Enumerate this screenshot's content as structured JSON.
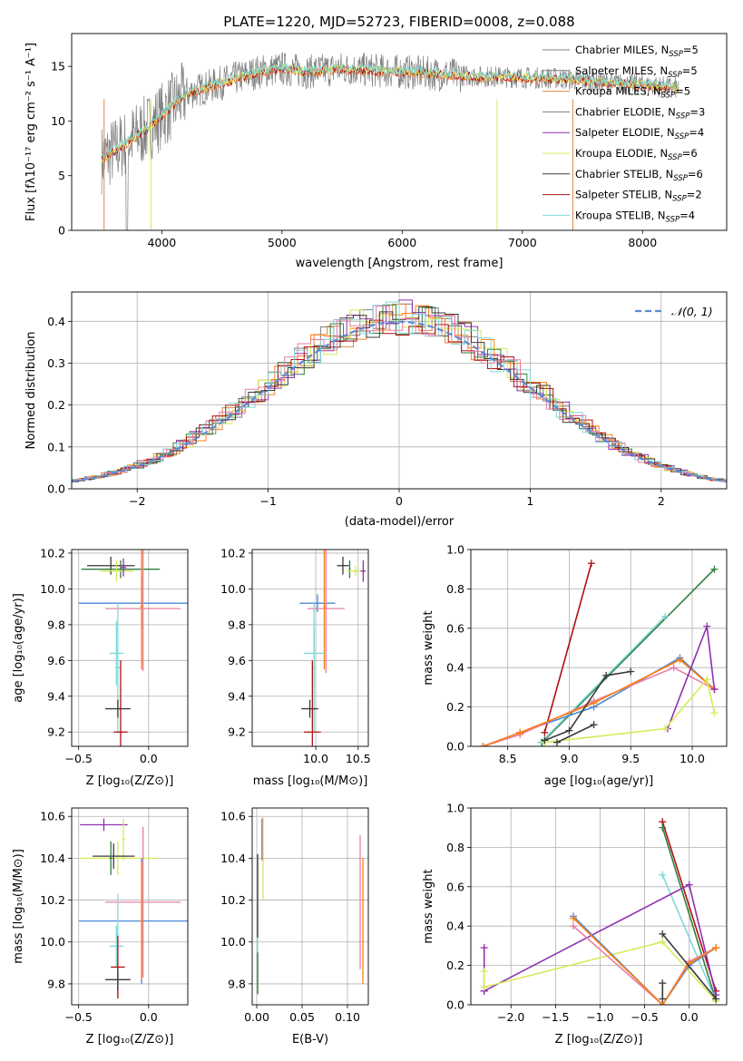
{
  "figure": {
    "title": "PLATE=1220, MJD=52723, FIBERID=0008, z=0.088"
  },
  "colors": {
    "grid": "#b0b0b0",
    "chabrier_miles": "#7f7f7f",
    "salpeter_miles": "#ff7f0e",
    "kroupa_miles": "#e8843c",
    "chabrier_elodie": "#2f7d3f",
    "salpeter_elodie": "#9030b0",
    "kroupa_elodie": "#d7ea5a",
    "chabrier_stelib": "#3a3a3a",
    "salpeter_stelib": "#b01010",
    "kroupa_stelib": "#7fd8d8",
    "blue_series": "#4a88d8",
    "pink_series": "#e67fa8",
    "normal_curve": "#5b8bd6"
  },
  "chart_data": [
    {
      "id": "spectrum",
      "type": "line",
      "title": "PLATE=1220, MJD=52723, FIBERID=0008, z=0.088",
      "xlabel": "wavelength [Angstrom, rest frame]",
      "ylabel": "Flux [fλ10⁻¹⁷ erg cm⁻² s⁻¹ A⁻¹]",
      "xlim": [
        3250,
        8700
      ],
      "ylim": [
        0,
        18
      ],
      "xticks": [
        4000,
        5000,
        6000,
        7000,
        8000
      ],
      "yticks": [
        0,
        5,
        10,
        15
      ],
      "grid": false,
      "legend_position": "right",
      "series": [
        {
          "name": "Chabrier MILES, N",
          "sub": "SSP",
          "suffix": "=5",
          "color": "#7f7f7f"
        },
        {
          "name": "Salpeter MILES, N",
          "sub": "SSP",
          "suffix": "=5",
          "color": "#7f7f7f"
        },
        {
          "name": "Kroupa MILES, N",
          "sub": "SSP",
          "suffix": "=5",
          "color": "#e8843c"
        },
        {
          "name": "Chabrier ELODIE, N",
          "sub": "SSP",
          "suffix": "=3",
          "color": "#7f7f7f"
        },
        {
          "name": "Salpeter ELODIE, N",
          "sub": "SSP",
          "suffix": "=4",
          "color": "#9030b0"
        },
        {
          "name": "Kroupa ELODIE, N",
          "sub": "SSP",
          "suffix": "=6",
          "color": "#d7ea5a"
        },
        {
          "name": "Chabrier STELIB, N",
          "sub": "SSP",
          "suffix": "=6",
          "color": "#3a3a3a"
        },
        {
          "name": "Salpeter STELIB, N",
          "sub": "SSP",
          "suffix": "=2",
          "color": "#b01010"
        },
        {
          "name": "Kroupa STELIB, N",
          "sub": "SSP",
          "suffix": "=4",
          "color": "#7fd8d8"
        }
      ],
      "continuum": {
        "x": [
          3500,
          3700,
          3900,
          4000,
          4200,
          4500,
          4800,
          5000,
          5200,
          5500,
          5800,
          6000,
          6300,
          6600,
          7000,
          7300,
          7600,
          8000,
          8300
        ],
        "y": [
          6.5,
          8.0,
          9.5,
          10.5,
          12.5,
          13.5,
          14.5,
          14.8,
          14.5,
          14.8,
          14.6,
          14.5,
          14.3,
          14.1,
          14.0,
          13.9,
          13.6,
          13.3,
          13.0
        ]
      }
    },
    {
      "id": "residuals",
      "type": "bar",
      "xlabel": "(data-model)/error",
      "ylabel": "Normed distribution",
      "xlim": [
        -2.5,
        2.5
      ],
      "ylim": [
        0,
        0.47
      ],
      "xticks": [
        -2,
        -1,
        0,
        1,
        2
      ],
      "yticks": [
        0.0,
        0.1,
        0.2,
        0.3,
        0.4
      ],
      "grid": true,
      "legend_position": "top-right",
      "legend": [
        {
          "name": "𝒩(0, 1)",
          "style": "dashed",
          "color": "#5b8bd6"
        }
      ]
    },
    {
      "id": "age_vs_Z",
      "type": "scatter",
      "xlabel": "Z [log₁₀(Z/Z⊙)]",
      "ylabel": "age  [log₁₀(age/yr)]",
      "xlim": [
        -0.55,
        0.28
      ],
      "ylim": [
        9.12,
        10.22
      ],
      "xticks": [
        -0.5,
        0.0
      ],
      "yticks": [
        9.2,
        9.4,
        9.6,
        9.8,
        10.0,
        10.2
      ],
      "grid": true,
      "points": [
        {
          "x": -0.27,
          "y": 10.13,
          "xerr": 0.17,
          "yerr": 0.05,
          "color": "#3a3a3a"
        },
        {
          "x": -0.2,
          "y": 10.11,
          "xerr": 0.28,
          "yerr": 0.05,
          "color": "#2f7d3f"
        },
        {
          "x": -0.23,
          "y": 10.1,
          "xerr": 0.12,
          "yerr": 0.06,
          "color": "#d7ea5a"
        },
        {
          "x": -0.18,
          "y": 10.12,
          "xerr": 0.02,
          "yerr": 0.05,
          "color": "#9030b0"
        },
        {
          "x": -0.05,
          "y": 9.92,
          "xerr": 0.45,
          "yerr": 0.15,
          "color": "#4a88d8"
        },
        {
          "x": -0.04,
          "y": 9.89,
          "xerr": 0.27,
          "yerr": 0.35,
          "color": "#e67fa8"
        },
        {
          "x": -0.05,
          "y": 9.9,
          "xerr": 0.01,
          "yerr": 0.35,
          "color": "#ff7f0e"
        },
        {
          "x": -0.23,
          "y": 9.64,
          "xerr": 0.05,
          "yerr": 0.18,
          "color": "#7fd8d8"
        },
        {
          "x": -0.22,
          "y": 9.56,
          "xerr": 0.02,
          "yerr": 0.36,
          "color": "#7fd8d8"
        },
        {
          "x": -0.22,
          "y": 9.33,
          "xerr": 0.09,
          "yerr": 0.05,
          "color": "#3a3a3a"
        },
        {
          "x": -0.2,
          "y": 9.2,
          "xerr": 0.05,
          "yerr": 0.4,
          "color": "#b01010"
        }
      ]
    },
    {
      "id": "age_vs_mass",
      "type": "scatter",
      "xlabel": "mass [log₁₀(M/M⊙)]",
      "ylabel": "",
      "xlim": [
        9.25,
        10.62
      ],
      "ylim": [
        9.12,
        10.22
      ],
      "xticks": [
        10.0,
        10.5
      ],
      "yticks": [
        9.2,
        9.4,
        9.6,
        9.8,
        10.0,
        10.2
      ],
      "grid": true,
      "points": [
        {
          "x": 10.32,
          "y": 10.13,
          "xerr": 0.07,
          "yerr": 0.05,
          "color": "#3a3a3a"
        },
        {
          "x": 10.4,
          "y": 10.11,
          "xerr": 0.01,
          "yerr": 0.05,
          "color": "#2f7d3f"
        },
        {
          "x": 10.47,
          "y": 10.1,
          "xerr": 0.1,
          "yerr": 0.03,
          "color": "#d7ea5a"
        },
        {
          "x": 10.56,
          "y": 10.1,
          "xerr": 0.03,
          "yerr": 0.06,
          "color": "#9030b0"
        },
        {
          "x": 10.02,
          "y": 9.92,
          "xerr": 0.21,
          "yerr": 0.05,
          "color": "#4a88d8"
        },
        {
          "x": 10.12,
          "y": 9.89,
          "xerr": 0.22,
          "yerr": 0.36,
          "color": "#e67fa8"
        },
        {
          "x": 10.1,
          "y": 9.9,
          "xerr": 0.01,
          "yerr": 0.35,
          "color": "#ff7f0e"
        },
        {
          "x": 9.98,
          "y": 9.64,
          "xerr": 0.12,
          "yerr": 0.18,
          "color": "#7fd8d8"
        },
        {
          "x": 9.98,
          "y": 9.56,
          "xerr": 0.02,
          "yerr": 0.36,
          "color": "#7fd8d8"
        },
        {
          "x": 9.93,
          "y": 9.33,
          "xerr": 0.1,
          "yerr": 0.05,
          "color": "#3a3a3a"
        },
        {
          "x": 9.96,
          "y": 9.2,
          "xerr": 0.1,
          "yerr": 0.4,
          "color": "#b01010"
        }
      ]
    },
    {
      "id": "mw_vs_age",
      "type": "line",
      "xlabel": "age  [log₁₀(age/yr)]",
      "ylabel": "mass weight",
      "xlim": [
        8.2,
        10.28
      ],
      "ylim": [
        0,
        1
      ],
      "xticks": [
        8.5,
        9.0,
        9.5,
        10.0
      ],
      "yticks": [
        0.0,
        0.2,
        0.4,
        0.6,
        0.8,
        1.0
      ],
      "grid": true,
      "series": [
        {
          "color": "#b01010",
          "x": [
            8.8,
            9.18
          ],
          "y": [
            0.07,
            0.93
          ]
        },
        {
          "color": "#2f7d3f",
          "x": [
            8.78,
            10.18
          ],
          "y": [
            0.02,
            0.9
          ]
        },
        {
          "color": "#7fd8d8",
          "x": [
            8.77,
            9.78
          ],
          "y": [
            0.02,
            0.66
          ]
        },
        {
          "color": "#4a88d8",
          "x": [
            8.3,
            8.6,
            9.2,
            9.9,
            10.18
          ],
          "y": [
            0.0,
            0.07,
            0.2,
            0.45,
            0.29
          ]
        },
        {
          "color": "#e67fa8",
          "x": [
            8.3,
            8.6,
            9.2,
            9.85,
            10.18
          ],
          "y": [
            0.0,
            0.06,
            0.23,
            0.4,
            0.29
          ]
        },
        {
          "color": "#ff7f0e",
          "x": [
            8.3,
            8.6,
            9.2,
            9.9,
            10.18
          ],
          "y": [
            0.0,
            0.07,
            0.22,
            0.44,
            0.29
          ]
        },
        {
          "color": "#9030b0",
          "x": [
            9.8,
            10.12,
            10.18
          ],
          "y": [
            0.09,
            0.61,
            0.29
          ]
        },
        {
          "color": "#d7ea5a",
          "x": [
            8.8,
            9.78,
            10.12,
            10.18
          ],
          "y": [
            0.02,
            0.09,
            0.34,
            0.17
          ]
        },
        {
          "color": "#3a3a3a",
          "x": [
            8.8,
            9.0,
            9.3,
            9.5
          ],
          "y": [
            0.03,
            0.08,
            0.36,
            0.38
          ]
        },
        {
          "color": "#3a3a3a",
          "x": [
            8.9,
            9.2
          ],
          "y": [
            0.02,
            0.11
          ]
        }
      ]
    },
    {
      "id": "mass_vs_Z",
      "type": "scatter",
      "xlabel": "Z [log₁₀(Z/Z⊙)]",
      "ylabel": "mass [log₁₀(M/M⊙)]",
      "xlim": [
        -0.55,
        0.28
      ],
      "ylim": [
        9.7,
        10.64
      ],
      "xticks": [
        -0.5,
        0.0
      ],
      "yticks": [
        9.8,
        10.0,
        10.2,
        10.4,
        10.6
      ],
      "grid": true,
      "points": [
        {
          "x": -0.32,
          "y": 10.56,
          "xerr": 0.17,
          "yerr": 0.03,
          "color": "#9030b0"
        },
        {
          "x": -0.18,
          "y": 10.49,
          "xerr": 0.01,
          "yerr": 0.1,
          "color": "#d7ea5a"
        },
        {
          "x": -0.22,
          "y": 10.4,
          "xerr": 0.28,
          "yerr": 0.08,
          "color": "#d7ea5a"
        },
        {
          "x": -0.25,
          "y": 10.41,
          "xerr": 0.15,
          "yerr": 0.06,
          "color": "#3a3a3a"
        },
        {
          "x": -0.27,
          "y": 10.4,
          "xerr": 0.01,
          "yerr": 0.08,
          "color": "#2f7d3f"
        },
        {
          "x": -0.04,
          "y": 10.19,
          "xerr": 0.27,
          "yerr": 0.36,
          "color": "#e67fa8"
        },
        {
          "x": -0.05,
          "y": 10.1,
          "xerr": 0.45,
          "yerr": 0.3,
          "color": "#4a88d8"
        },
        {
          "x": -0.05,
          "y": 10.1,
          "xerr": 0.01,
          "yerr": 0.28,
          "color": "#ff7f0e"
        },
        {
          "x": -0.23,
          "y": 9.98,
          "xerr": 0.05,
          "yerr": 0.1,
          "color": "#7fd8d8"
        },
        {
          "x": -0.22,
          "y": 9.98,
          "xerr": 0.02,
          "yerr": 0.25,
          "color": "#7fd8d8"
        },
        {
          "x": -0.22,
          "y": 9.88,
          "xerr": 0.05,
          "yerr": 0.15,
          "color": "#b01010"
        },
        {
          "x": -0.22,
          "y": 9.82,
          "xerr": 0.09,
          "yerr": 0.05,
          "color": "#3a3a3a"
        }
      ]
    },
    {
      "id": "mass_vs_ebv",
      "type": "scatter",
      "xlabel": "E(B-V)",
      "ylabel": "",
      "xlim": [
        -0.005,
        0.123
      ],
      "ylim": [
        9.7,
        10.64
      ],
      "xticks": [
        0.0,
        0.05,
        0.1
      ],
      "xticklabels": [
        "0.00",
        "0.05",
        "0.10"
      ],
      "yticks": [
        9.8,
        10.0,
        10.2,
        10.4,
        10.6
      ],
      "grid": true,
      "points": [
        {
          "x": 0.006,
          "y": 10.49,
          "xerr": 0.0,
          "yerr": 0.1,
          "color": "#9030b0"
        },
        {
          "x": 0.007,
          "y": 10.4,
          "xerr": 0.0,
          "yerr": 0.2,
          "color": "#d7ea5a"
        },
        {
          "x": 0.001,
          "y": 10.22,
          "xerr": 0.0,
          "yerr": 0.2,
          "color": "#3a3a3a"
        },
        {
          "x": 0.001,
          "y": 9.9,
          "xerr": 0.0,
          "yerr": 0.12,
          "color": "#7fd8d8"
        },
        {
          "x": 0.001,
          "y": 9.85,
          "xerr": 0.0,
          "yerr": 0.1,
          "color": "#2f7d3f"
        },
        {
          "x": 0.114,
          "y": 10.19,
          "xerr": 0.0,
          "yerr": 0.32,
          "color": "#e67fa8"
        },
        {
          "x": 0.117,
          "y": 10.1,
          "xerr": 0.0,
          "yerr": 0.3,
          "color": "#ff7f0e"
        }
      ]
    },
    {
      "id": "mw_vs_Z",
      "type": "line",
      "xlabel": "Z [log₁₀(Z/Z⊙)]",
      "ylabel": "mass weight",
      "xlim": [
        -2.45,
        0.42
      ],
      "ylim": [
        0,
        1
      ],
      "xticks": [
        -2.0,
        -1.5,
        -1.0,
        -0.5,
        0.0
      ],
      "yticks": [
        0.0,
        0.2,
        0.4,
        0.6,
        0.8,
        1.0
      ],
      "grid": true,
      "series": [
        {
          "color": "#b01010",
          "x": [
            -0.3,
            0.3
          ],
          "y": [
            0.93,
            0.07
          ]
        },
        {
          "color": "#2f7d3f",
          "x": [
            -0.3,
            0.3
          ],
          "y": [
            0.9,
            0.02
          ]
        },
        {
          "color": "#7fd8d8",
          "x": [
            -0.3,
            0.3
          ],
          "y": [
            0.66,
            0.02
          ]
        },
        {
          "color": "#9030b0",
          "x": [
            -2.3,
            0.0,
            0.3
          ],
          "y": [
            0.07,
            0.61,
            0.05
          ]
        },
        {
          "color": "#9030b0",
          "x": [
            -2.3,
            -2.3
          ],
          "y": [
            0.07,
            0.29
          ]
        },
        {
          "color": "#d7ea5a",
          "x": [
            -2.3,
            -0.3,
            0.3
          ],
          "y": [
            0.09,
            0.32,
            0.02
          ]
        },
        {
          "color": "#d7ea5a",
          "x": [
            -2.3,
            -2.3
          ],
          "y": [
            0.09,
            0.17
          ]
        },
        {
          "color": "#4a88d8",
          "x": [
            -1.3,
            -0.3,
            0.0,
            0.3
          ],
          "y": [
            0.45,
            0.0,
            0.2,
            0.29
          ]
        },
        {
          "color": "#e67fa8",
          "x": [
            -1.3,
            -0.3,
            0.0,
            0.3
          ],
          "y": [
            0.4,
            0.0,
            0.22,
            0.29
          ]
        },
        {
          "color": "#ff7f0e",
          "x": [
            -1.3,
            -0.3,
            0.0,
            0.3
          ],
          "y": [
            0.44,
            0.0,
            0.21,
            0.29
          ]
        },
        {
          "color": "#3a3a3a",
          "x": [
            -0.3,
            0.3
          ],
          "y": [
            0.36,
            0.03
          ]
        },
        {
          "color": "#3a3a3a",
          "x": [
            -0.3,
            -0.3
          ],
          "y": [
            0.03,
            0.11
          ]
        }
      ]
    }
  ]
}
